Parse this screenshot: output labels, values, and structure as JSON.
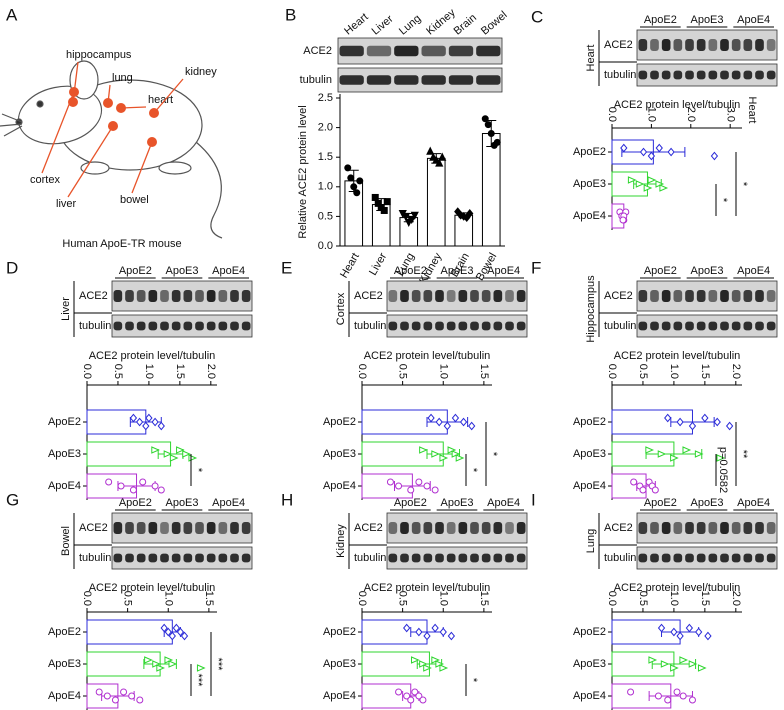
{
  "figure_a": {
    "label": "A",
    "organs": [
      "hippocampus",
      "lung",
      "heart",
      "kidney",
      "cortex",
      "liver",
      "bowel"
    ],
    "caption": "Human ApoE-TR mouse"
  },
  "chart_data": [
    {
      "panel": "B",
      "type": "bar",
      "blot_rows": [
        "ACE2",
        "tubulin"
      ],
      "ylabel": "Relative ACE2 protein level",
      "categories": [
        "Heart",
        "Liver",
        "Lung",
        "Kidney",
        "Brain",
        "Bowel"
      ],
      "color": "#000000",
      "values": [
        1.1,
        0.7,
        0.48,
        1.48,
        0.52,
        1.9
      ],
      "errors": [
        0.18,
        0.1,
        0.07,
        0.08,
        0.04,
        0.22
      ],
      "points": [
        [
          1.32,
          1.15,
          1.0,
          0.9,
          1.1
        ],
        [
          0.82,
          0.72,
          0.65,
          0.6,
          0.75
        ],
        [
          0.55,
          0.5,
          0.4,
          0.45,
          0.52
        ],
        [
          1.6,
          1.5,
          1.45,
          1.4,
          1.5
        ],
        [
          0.58,
          0.52,
          0.5,
          0.48,
          0.55
        ],
        [
          2.15,
          2.05,
          1.9,
          1.7,
          1.75
        ]
      ],
      "ylim": [
        0,
        2.5
      ],
      "yticks": [
        {
          "value": 0,
          "label": "0.0"
        },
        0.5,
        {
          "value": 1,
          "label": "1.0"
        },
        1.5,
        {
          "value": 2,
          "label": "2.0"
        },
        2.5
      ]
    },
    {
      "panel": "C",
      "type": "hbar",
      "tissue": "Heart",
      "x2label": "Heart",
      "blot_rows": [
        "ACE2",
        "tubulin"
      ],
      "categories": [
        "ApoE2",
        "ApoE3",
        "ApoE4"
      ],
      "colors": [
        "#2b2bd8",
        "#2fd62f",
        "#b02fd0"
      ],
      "markers": [
        "diamond",
        "triangle",
        "circle"
      ],
      "xlabel": "ACE2 protein level/tubulin",
      "xlim": [
        0,
        3.3
      ],
      "xticks": [
        {
          "value": 0,
          "label": "0.0"
        },
        {
          "value": 1,
          "label": "1.0"
        },
        {
          "value": 2,
          "label": "2.0"
        },
        {
          "value": 3,
          "label": "3.0"
        }
      ],
      "values": [
        1.05,
        0.9,
        0.3
      ],
      "errors": [
        0.8,
        0.35,
        0.05
      ],
      "points": [
        [
          0.3,
          0.8,
          1.0,
          1.2,
          1.5,
          2.6
        ],
        [
          0.5,
          0.7,
          0.9,
          1.0,
          1.2,
          1.3
        ],
        [
          0.2,
          0.25,
          0.3,
          0.35,
          0.3,
          0.28
        ]
      ],
      "comparisons": [
        {
          "label": "*",
          "groups": [
            "ApoE3",
            "ApoE4"
          ]
        },
        {
          "label": "*",
          "groups": [
            "ApoE2",
            "ApoE4"
          ]
        }
      ]
    },
    {
      "panel": "D",
      "type": "hbar",
      "tissue": "Liver",
      "blot_rows": [
        "ACE2",
        "tubulin"
      ],
      "categories": [
        "ApoE2",
        "ApoE3",
        "ApoE4"
      ],
      "colors": [
        "#2b2bd8",
        "#2fd62f",
        "#b02fd0"
      ],
      "markers": [
        "diamond",
        "triangle",
        "circle"
      ],
      "xlabel": "ACE2 protein level/tubulin",
      "xlim": [
        0,
        2.1
      ],
      "xticks": [
        {
          "value": 0,
          "label": "0.0"
        },
        0.5,
        {
          "value": 1,
          "label": "1.0"
        },
        1.5,
        {
          "value": 2,
          "label": "2.0"
        }
      ],
      "values": [
        0.95,
        1.35,
        0.8
      ],
      "errors": [
        0.25,
        0.2,
        0.3
      ],
      "points": [
        [
          0.75,
          0.85,
          0.95,
          1.0,
          1.1,
          1.2
        ],
        [
          1.1,
          1.3,
          1.4,
          1.5,
          1.6,
          1.7
        ],
        [
          0.35,
          0.55,
          0.75,
          0.9,
          1.1,
          1.2
        ]
      ],
      "comparisons": [
        {
          "label": "*",
          "groups": [
            "ApoE3",
            "ApoE4"
          ]
        }
      ]
    },
    {
      "panel": "E",
      "type": "hbar",
      "tissue": "Cortex",
      "blot_rows": [
        "ACE2",
        "tubulin"
      ],
      "categories": [
        "ApoE2",
        "ApoE3",
        "ApoE4"
      ],
      "colors": [
        "#2b2bd8",
        "#2fd62f",
        "#b02fd0"
      ],
      "markers": [
        "diamond",
        "triangle",
        "circle"
      ],
      "xlabel": "ACE2 protein level/tubulin",
      "xlim": [
        0,
        1.6
      ],
      "xticks": [
        {
          "value": 0,
          "label": "0.0"
        },
        0.5,
        {
          "value": 1,
          "label": "1.0"
        },
        1.5
      ],
      "values": [
        1.05,
        1.0,
        0.62
      ],
      "errors": [
        0.25,
        0.2,
        0.22
      ],
      "points": [
        [
          0.85,
          0.95,
          1.05,
          1.15,
          1.25,
          1.35
        ],
        [
          0.75,
          0.9,
          1.0,
          1.1,
          1.15,
          1.2
        ],
        [
          0.35,
          0.45,
          0.6,
          0.7,
          0.8,
          0.9
        ]
      ],
      "comparisons": [
        {
          "label": "*",
          "groups": [
            "ApoE3",
            "ApoE4"
          ]
        },
        {
          "label": "*",
          "groups": [
            "ApoE2",
            "ApoE4"
          ]
        }
      ]
    },
    {
      "panel": "F",
      "type": "hbar",
      "tissue": "Hippocampus",
      "blot_rows": [
        "ACE2",
        "tubulin"
      ],
      "categories": [
        "ApoE2",
        "ApoE3",
        "ApoE4"
      ],
      "colors": [
        "#2b2bd8",
        "#2fd62f",
        "#b02fd0"
      ],
      "markers": [
        "diamond",
        "triangle",
        "circle"
      ],
      "xlabel": "ACE2 protein level/tubulin",
      "xlim": [
        0,
        2.1
      ],
      "xticks": [
        {
          "value": 0,
          "label": "0.0"
        },
        0.5,
        {
          "value": 1,
          "label": "1.0"
        },
        1.5,
        {
          "value": 2,
          "label": "2.0"
        }
      ],
      "values": [
        1.3,
        1.0,
        0.55
      ],
      "errors": [
        0.35,
        0.45,
        0.15
      ],
      "points": [
        [
          0.9,
          1.1,
          1.3,
          1.5,
          1.7,
          1.9
        ],
        [
          0.6,
          0.8,
          1.0,
          1.2,
          1.4,
          1.75
        ],
        [
          0.35,
          0.45,
          0.5,
          0.6,
          0.65,
          0.7
        ]
      ],
      "comparisons": [
        {
          "label": "p=0.0582",
          "groups": [
            "ApoE3",
            "ApoE4"
          ]
        },
        {
          "label": "**",
          "groups": [
            "ApoE2",
            "ApoE4"
          ]
        }
      ]
    },
    {
      "panel": "G",
      "type": "hbar",
      "tissue": "Bowel",
      "blot_rows": [
        "ACE2",
        "tubulin"
      ],
      "categories": [
        "ApoE2",
        "ApoE3",
        "ApoE4"
      ],
      "colors": [
        "#2b2bd8",
        "#2fd62f",
        "#b02fd0"
      ],
      "markers": [
        "diamond",
        "triangle",
        "circle"
      ],
      "xlabel": "ACE2 protein level/tubulin",
      "xlim": [
        0,
        1.6
      ],
      "xticks": [
        {
          "value": 0,
          "label": "0.0"
        },
        0.5,
        {
          "value": 1,
          "label": "1.0"
        },
        1.5
      ],
      "values": [
        1.05,
        0.9,
        0.38
      ],
      "errors": [
        0.1,
        0.2,
        0.2
      ],
      "points": [
        [
          0.95,
          1.0,
          1.05,
          1.1,
          1.15,
          1.2
        ],
        [
          0.75,
          0.85,
          0.9,
          1.0,
          1.05,
          1.4
        ],
        [
          0.15,
          0.25,
          0.35,
          0.45,
          0.55,
          0.65
        ]
      ],
      "comparisons": [
        {
          "label": "***",
          "groups": [
            "ApoE3",
            "ApoE4"
          ]
        },
        {
          "label": "***",
          "groups": [
            "ApoE2",
            "ApoE4"
          ]
        }
      ]
    },
    {
      "panel": "H",
      "type": "hbar",
      "tissue": "Kidney",
      "blot_rows": [
        "ACE2",
        "tubulin"
      ],
      "categories": [
        "ApoE2",
        "ApoE3",
        "ApoE4"
      ],
      "colors": [
        "#2b2bd8",
        "#2fd62f",
        "#b02fd0"
      ],
      "markers": [
        "diamond",
        "triangle",
        "circle"
      ],
      "xlabel": "ACE2 protein level/tubulin",
      "xlim": [
        0,
        1.6
      ],
      "xticks": [
        {
          "value": 0,
          "label": "0.0"
        },
        0.5,
        {
          "value": 1,
          "label": "1.0"
        },
        1.5
      ],
      "values": [
        0.8,
        0.83,
        0.6
      ],
      "errors": [
        0.2,
        0.15,
        0.1
      ],
      "points": [
        [
          0.55,
          0.7,
          0.8,
          0.9,
          1.0,
          1.1
        ],
        [
          0.65,
          0.75,
          0.8,
          0.9,
          0.95,
          1.0
        ],
        [
          0.45,
          0.55,
          0.6,
          0.65,
          0.7,
          0.75
        ]
      ],
      "comparisons": [
        {
          "label": "*",
          "groups": [
            "ApoE3",
            "ApoE4"
          ]
        }
      ]
    },
    {
      "panel": "I",
      "type": "hbar",
      "tissue": "Lung",
      "blot_rows": [
        "ACE2",
        "tubulin"
      ],
      "categories": [
        "ApoE2",
        "ApoE3",
        "ApoE4"
      ],
      "colors": [
        "#2b2bd8",
        "#2fd62f",
        "#b02fd0"
      ],
      "markers": [
        "diamond",
        "triangle",
        "circle"
      ],
      "xlabel": "ACE2 protein level/tubulin",
      "xlim": [
        0,
        2.1
      ],
      "xticks": [
        {
          "value": 0,
          "label": "0.0"
        },
        0.5,
        {
          "value": 1,
          "label": "1.0"
        },
        1.5,
        {
          "value": 2,
          "label": "2.0"
        }
      ],
      "values": [
        1.1,
        1.0,
        0.95
      ],
      "errors": [
        0.3,
        0.35,
        0.35
      ],
      "points": [
        [
          0.8,
          1.0,
          1.1,
          1.25,
          1.4,
          1.55
        ],
        [
          0.65,
          0.85,
          1.0,
          1.15,
          1.3,
          1.45
        ],
        [
          0.3,
          0.75,
          0.9,
          1.05,
          1.15,
          1.3
        ]
      ],
      "comparisons": []
    }
  ]
}
